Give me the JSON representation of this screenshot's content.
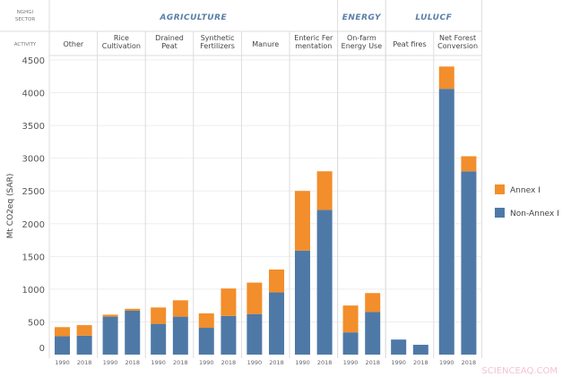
{
  "chart_data": {
    "type": "bar",
    "stacked": true,
    "ylabel": "Mt CO2eq (SAR)",
    "ylim": [
      0,
      4500
    ],
    "yticks": [
      0,
      500,
      1000,
      1500,
      2000,
      2500,
      3000,
      3500,
      4000,
      4500
    ],
    "grid": true,
    "legend_position": "right",
    "header_labels": {
      "sector": "NGHGI SECTOR",
      "activity": "ACTIVITY"
    },
    "sectors": [
      {
        "name": "AGRICULTURE",
        "span": 6
      },
      {
        "name": "ENERGY",
        "span": 1
      },
      {
        "name": "LULUCF",
        "span": 2
      }
    ],
    "activities": [
      {
        "label": [
          "Other"
        ]
      },
      {
        "label": [
          "Rice",
          "Cultivation"
        ]
      },
      {
        "label": [
          "Drained",
          "Peat"
        ]
      },
      {
        "label": [
          "Synthetic",
          "Fertilizers"
        ]
      },
      {
        "label": [
          "Manure"
        ]
      },
      {
        "label": [
          "Enteric Fer",
          "mentation"
        ]
      },
      {
        "label": [
          "On-farm",
          "Energy Use"
        ]
      },
      {
        "label": [
          "Peat fires"
        ]
      },
      {
        "label": [
          "Net Forest",
          "Conversion"
        ]
      }
    ],
    "years": [
      "1990",
      "2018"
    ],
    "series": [
      {
        "name": "Non-Annex I",
        "color": "#4e79a7",
        "values": [
          [
            280,
            290
          ],
          [
            580,
            670
          ],
          [
            470,
            580
          ],
          [
            410,
            590
          ],
          [
            620,
            950
          ],
          [
            1590,
            2210
          ],
          [
            340,
            650
          ],
          [
            230,
            150
          ],
          [
            4060,
            2800
          ]
        ]
      },
      {
        "name": "Annex I",
        "color": "#f28e2b",
        "values": [
          [
            140,
            160
          ],
          [
            30,
            30
          ],
          [
            250,
            250
          ],
          [
            220,
            420
          ],
          [
            480,
            350
          ],
          [
            910,
            590
          ],
          [
            410,
            290
          ],
          [
            0,
            0
          ],
          [
            340,
            230
          ]
        ]
      }
    ]
  },
  "watermark": "SCIENCEAQ.COM"
}
